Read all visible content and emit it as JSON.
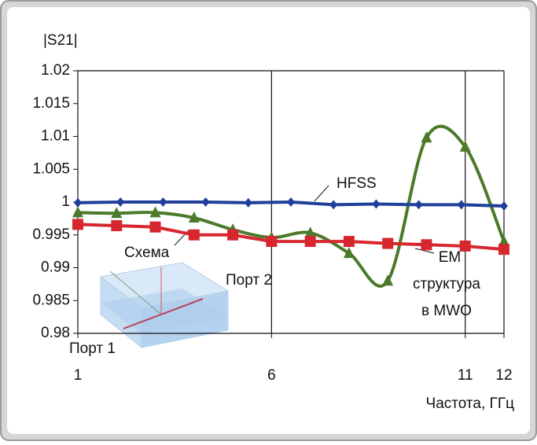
{
  "chart_data": {
    "type": "line",
    "y_axis_title": "|S21|",
    "x_axis_title": "Частота, ГГц",
    "xlim": [
      1,
      12
    ],
    "xticks": [
      1,
      6,
      11,
      12
    ],
    "ylim": [
      0.98,
      1.02
    ],
    "yticks": [
      0.98,
      0.985,
      0.99,
      0.995,
      1,
      1.005,
      1.01,
      1.015,
      1.02
    ],
    "series": [
      {
        "name": "HFSS",
        "color": "#1f3f9a",
        "marker": "diamond",
        "smooth": false,
        "x": [
          1,
          2.1,
          3.2,
          4.3,
          5.4,
          6.5,
          7.6,
          8.7,
          9.8,
          10.9,
          12
        ],
        "values": [
          0.9999,
          1.0,
          1.0,
          1.0,
          0.9999,
          1.0,
          0.9996,
          0.9997,
          0.9996,
          0.9996,
          0.9994
        ]
      },
      {
        "name": "Схема",
        "color": "#d7262e",
        "marker": "square",
        "smooth": false,
        "x": [
          1,
          2,
          3,
          4,
          5,
          6,
          7,
          8,
          9,
          10,
          11,
          12
        ],
        "values": [
          0.9966,
          0.9964,
          0.9962,
          0.995,
          0.995,
          0.994,
          0.994,
          0.994,
          0.9937,
          0.9935,
          0.9933,
          0.9928
        ]
      },
      {
        "name": "EM структура в MWO",
        "color": "#4b7a2a",
        "marker": "triangle",
        "smooth": true,
        "x": [
          1,
          2,
          3,
          4,
          5,
          6,
          7,
          8,
          9,
          10,
          11,
          12
        ],
        "values": [
          0.9984,
          0.9983,
          0.9984,
          0.9976,
          0.9958,
          0.9946,
          0.9953,
          0.9922,
          0.988,
          1.0098,
          1.0084,
          0.994
        ]
      }
    ],
    "annotations": {
      "hfss": "HFSS",
      "scheme": "Схема",
      "port2": "Порт 2",
      "port1": "Порт 1",
      "em": [
        "EM",
        "структура",
        "в MWO"
      ]
    }
  }
}
